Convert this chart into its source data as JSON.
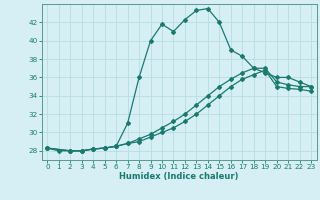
{
  "xlabel": "Humidex (Indice chaleur)",
  "background_color": "#d6eff5",
  "grid_color": "#b8dde4",
  "line_color": "#1a7a6e",
  "x_ticks": [
    0,
    1,
    2,
    3,
    4,
    5,
    6,
    7,
    8,
    9,
    10,
    11,
    12,
    13,
    14,
    15,
    16,
    17,
    18,
    19,
    20,
    21,
    22,
    23
  ],
  "y_ticks": [
    28,
    30,
    32,
    34,
    36,
    38,
    40,
    42
  ],
  "ylim": [
    27.0,
    44.0
  ],
  "xlim": [
    -0.5,
    23.5
  ],
  "line1_x": [
    0,
    1,
    2,
    3,
    4,
    5,
    6,
    7,
    8,
    9,
    10,
    11,
    12,
    13,
    14,
    15,
    16,
    17,
    18,
    19,
    20,
    21,
    22,
    23
  ],
  "line1_y": [
    28.3,
    28.0,
    28.0,
    28.0,
    28.2,
    28.3,
    28.5,
    31.0,
    36.0,
    40.0,
    41.8,
    41.0,
    42.3,
    43.3,
    43.5,
    42.0,
    39.0,
    38.3,
    37.0,
    36.5,
    36.0,
    36.0,
    35.5,
    35.0
  ],
  "line2_x": [
    0,
    2,
    3,
    4,
    5,
    6,
    7,
    8,
    9,
    10,
    11,
    12,
    13,
    14,
    15,
    16,
    17,
    18,
    19,
    20,
    21,
    22,
    23
  ],
  "line2_y": [
    28.3,
    28.0,
    28.0,
    28.2,
    28.3,
    28.5,
    28.8,
    29.3,
    29.8,
    30.5,
    31.2,
    32.0,
    33.0,
    34.0,
    35.0,
    35.8,
    36.5,
    37.0,
    37.0,
    35.5,
    35.2,
    35.0,
    35.0
  ],
  "line3_x": [
    0,
    2,
    3,
    4,
    5,
    6,
    7,
    8,
    9,
    10,
    11,
    12,
    13,
    14,
    15,
    16,
    17,
    18,
    19,
    20,
    21,
    22,
    23
  ],
  "line3_y": [
    28.3,
    28.0,
    28.0,
    28.2,
    28.3,
    28.5,
    28.8,
    29.0,
    29.5,
    30.0,
    30.5,
    31.2,
    32.0,
    33.0,
    34.0,
    35.0,
    35.8,
    36.3,
    36.8,
    35.0,
    34.8,
    34.7,
    34.5
  ],
  "markersize": 2.0,
  "linewidth": 0.9,
  "label_fontsize": 6.0,
  "tick_fontsize": 5.2
}
